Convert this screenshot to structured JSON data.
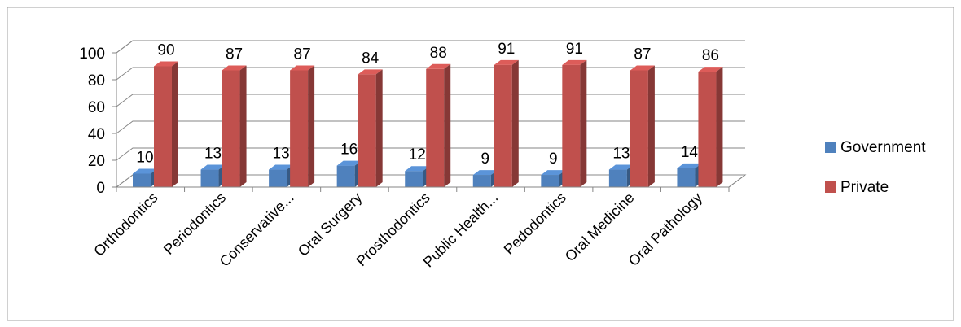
{
  "chart_data": {
    "type": "bar",
    "categories": [
      "Orthodontics",
      "Periodontics",
      "Conservative...",
      "Oral Surgery",
      "Prosthodontics",
      "Public Health...",
      "Pedodontics",
      "Oral Medicine",
      "Oral Pathology"
    ],
    "series": [
      {
        "name": "Government",
        "color": "#4f81bd",
        "values": [
          10,
          13,
          13,
          16,
          12,
          9,
          9,
          13,
          14
        ]
      },
      {
        "name": "Private",
        "color": "#c0504d",
        "values": [
          90,
          87,
          87,
          84,
          88,
          91,
          91,
          87,
          86
        ]
      }
    ],
    "yticks": [
      "0",
      "20",
      "40",
      "60",
      "80",
      "100"
    ],
    "ylim": [
      0,
      100
    ],
    "grid": true,
    "legend_position": "right",
    "chart_style": "3d-clustered-column"
  }
}
